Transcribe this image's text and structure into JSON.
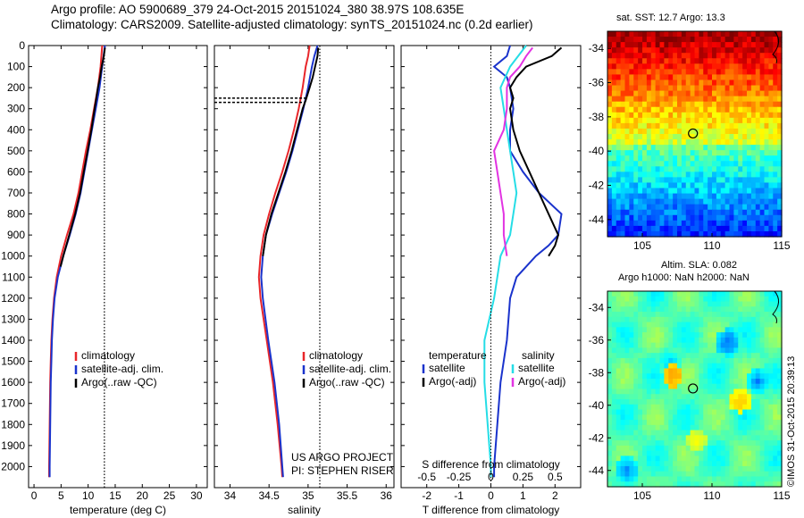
{
  "header": {
    "line1": "Argo profile: AO 5900689_379 24-Oct-2015 20151024_380 38.97S 108.635E",
    "line2": "Climatology: CARS2009. Satellite-adjusted climatology: synTS_20151024.nc (0.2d earlier)"
  },
  "chart_data": [
    {
      "type": "line",
      "name": "temperature-profile",
      "xlabel": "temperature (deg C)",
      "ylim": [
        2100,
        0
      ],
      "xlim": [
        -1,
        32
      ],
      "x_ticks": [
        0,
        5,
        10,
        15,
        20,
        25,
        30
      ],
      "y_ticks": [
        0,
        100,
        200,
        300,
        400,
        500,
        600,
        700,
        800,
        900,
        1000,
        1100,
        1200,
        1300,
        1400,
        1500,
        1600,
        1700,
        1800,
        1900,
        2000
      ],
      "ref_line_x": 13.0,
      "series": [
        {
          "name": "climatology",
          "color": "#e8262a",
          "depth": [
            0,
            100,
            200,
            300,
            400,
            500,
            600,
            700,
            800,
            900,
            1000,
            1100,
            1200,
            1300,
            1400,
            1500,
            1600,
            1800,
            2000,
            2050
          ],
          "values": [
            12.6,
            12.3,
            11.8,
            11.1,
            10.4,
            9.6,
            8.9,
            8.2,
            7.3,
            6.1,
            5.0,
            4.2,
            3.7,
            3.4,
            3.2,
            3.1,
            3.0,
            2.9,
            2.8,
            2.8
          ]
        },
        {
          "name": "satellite-adj. clim.",
          "color": "#1a33cc",
          "depth": [
            0,
            100,
            200,
            300,
            400,
            500,
            600,
            700,
            800,
            900,
            1000,
            1100,
            1200,
            1300,
            1400,
            1500,
            1600,
            1800,
            2000,
            2050
          ],
          "values": [
            13.1,
            12.6,
            12.1,
            11.4,
            10.7,
            10.0,
            9.3,
            8.6,
            7.7,
            6.6,
            5.4,
            4.4,
            3.8,
            3.5,
            3.3,
            3.2,
            3.1,
            3.0,
            2.9,
            2.9
          ]
        },
        {
          "name": "Argo(..raw -QC)",
          "color": "#000000",
          "depth": [
            10,
            50,
            100,
            150,
            200,
            250,
            300,
            400,
            500,
            600,
            700,
            800,
            900,
            1000,
            1050
          ],
          "values": [
            13.1,
            12.9,
            12.5,
            12.2,
            11.8,
            11.5,
            11.2,
            10.6,
            9.9,
            9.2,
            8.5,
            7.6,
            6.5,
            5.4,
            4.9
          ]
        }
      ],
      "legend": [
        "climatology",
        "satellite-adj. clim.",
        "Argo(..raw -QC)"
      ]
    },
    {
      "type": "line",
      "name": "salinity-profile",
      "xlabel": "salinity",
      "ylim": [
        2100,
        0
      ],
      "xlim": [
        33.8,
        36.1
      ],
      "x_ticks": [
        34,
        34.5,
        35,
        35.5,
        36
      ],
      "ref_line_x": 35.15,
      "series": [
        {
          "name": "climatology",
          "color": "#e8262a",
          "depth": [
            0,
            50,
            100,
            200,
            300,
            400,
            500,
            600,
            700,
            800,
            900,
            1000,
            1100,
            1200,
            1400,
            1600,
            1800,
            2000,
            2050
          ],
          "values": [
            35.02,
            35.0,
            34.97,
            34.93,
            34.88,
            34.82,
            34.75,
            34.67,
            34.58,
            34.5,
            34.43,
            34.39,
            34.37,
            34.39,
            34.47,
            34.55,
            34.61,
            34.66,
            34.67
          ]
        },
        {
          "name": "satellite-adj. clim.",
          "color": "#1a33cc",
          "depth": [
            0,
            50,
            100,
            200,
            300,
            400,
            500,
            600,
            700,
            800,
            900,
            1000,
            1100,
            1200,
            1400,
            1600,
            1800,
            2000,
            2050
          ],
          "values": [
            35.12,
            35.08,
            35.05,
            35.0,
            34.94,
            34.87,
            34.8,
            34.72,
            34.63,
            34.54,
            34.46,
            34.42,
            34.4,
            34.42,
            34.49,
            34.57,
            34.63,
            34.67,
            34.68
          ]
        },
        {
          "name": "Argo(..raw -QC)",
          "color": "#000000",
          "depth": [
            10,
            50,
            100,
            150,
            200,
            260,
            300,
            400,
            500,
            600,
            700,
            800,
            900,
            1000
          ],
          "values": [
            35.13,
            35.12,
            35.09,
            35.06,
            35.02,
            34.97,
            34.93,
            34.86,
            34.79,
            34.71,
            34.62,
            34.53,
            34.46,
            34.42
          ]
        }
      ],
      "legend": [
        "climatology",
        "satellite-adj. clim.",
        "Argo(..raw -QC)"
      ],
      "annotation": [
        "US ARGO PROJECT",
        "PI: STEPHEN RISER"
      ]
    },
    {
      "type": "line",
      "name": "difference-profile",
      "xlabel": "T difference from climatology",
      "xlabel_top": "S difference from climatology",
      "ylim": [
        2100,
        0
      ],
      "xlim": [
        -2.8,
        2.8
      ],
      "x_ticks": [
        -2,
        -1,
        0,
        1,
        2
      ],
      "x_ticks_top": [
        "-0.5",
        "-0.25",
        "0",
        "0.25",
        "0.5"
      ],
      "series": [
        {
          "name": "temperature satellite",
          "color": "#1a33cc",
          "depth": [
            0,
            50,
            100,
            150,
            200,
            300,
            400,
            500,
            600,
            700,
            800,
            900,
            950,
            1000,
            1100,
            1200,
            1400,
            1600,
            1800,
            2000,
            2050
          ],
          "values": [
            0.6,
            0.5,
            0.1,
            0.5,
            0.6,
            0.7,
            0.6,
            0.6,
            1.0,
            1.5,
            2.2,
            2.1,
            1.8,
            1.4,
            0.8,
            0.6,
            0.5,
            0.3,
            0.2,
            0.1,
            0.1
          ]
        },
        {
          "name": "temperature Argo(-adj)",
          "color": "#000000",
          "depth": [
            10,
            50,
            100,
            150,
            200,
            250,
            300,
            400,
            500,
            600,
            700,
            800,
            900,
            950,
            1000
          ],
          "values": [
            2.2,
            1.9,
            1.1,
            0.8,
            0.6,
            0.7,
            0.6,
            0.7,
            0.9,
            1.2,
            1.5,
            1.8,
            2.1,
            2.0,
            1.8
          ]
        },
        {
          "name": "salinity satellite",
          "color": "#25dde6",
          "depth": [
            0,
            100,
            200,
            300,
            400,
            500,
            600,
            700,
            800,
            900,
            1000,
            1200,
            1400,
            1600,
            1800,
            2000,
            2050
          ],
          "values": [
            1.1,
            0.6,
            0.3,
            0.4,
            0.5,
            0.6,
            0.7,
            0.8,
            0.7,
            0.6,
            0.3,
            0.1,
            -0.2,
            -0.2,
            -0.1,
            0.0,
            0.0
          ]
        },
        {
          "name": "salinity Argo(-adj)",
          "color": "#e233e2",
          "depth": [
            10,
            50,
            100,
            150,
            200,
            300,
            400,
            500,
            600,
            700,
            800,
            900,
            1000
          ],
          "values": [
            1.3,
            1.1,
            0.9,
            0.6,
            0.5,
            0.5,
            0.4,
            0.1,
            0.2,
            0.3,
            0.4,
            0.4,
            0.5
          ]
        }
      ],
      "legend": {
        "temperature": [
          "satellite",
          "Argo(-adj)"
        ],
        "salinity": [
          "satellite",
          "Argo(-adj)"
        ]
      }
    },
    {
      "type": "heatmap",
      "name": "sst-map",
      "title": "sat. SST: 12.7  Argo: 13.3",
      "xlim": [
        102.5,
        115
      ],
      "ylim": [
        -45,
        -33
      ],
      "x_ticks": [
        105,
        110,
        115
      ],
      "y_ticks": [
        -34,
        -36,
        -38,
        -40,
        -42,
        -44
      ],
      "marker": {
        "lon": 108.635,
        "lat": -38.97
      }
    },
    {
      "type": "heatmap",
      "name": "sla-map",
      "title": "Altim. SLA: 0.082",
      "subtitle": "Argo h1000: NaN h2000: NaN",
      "xlim": [
        102.5,
        115
      ],
      "ylim": [
        -45,
        -33
      ],
      "x_ticks": [
        105,
        110,
        115
      ],
      "y_ticks": [
        -34,
        -36,
        -38,
        -40,
        -42,
        -44
      ],
      "marker": {
        "lon": 108.635,
        "lat": -38.97
      }
    }
  ],
  "credit": "©IMOS 31-Oct-2015 20:39:13"
}
